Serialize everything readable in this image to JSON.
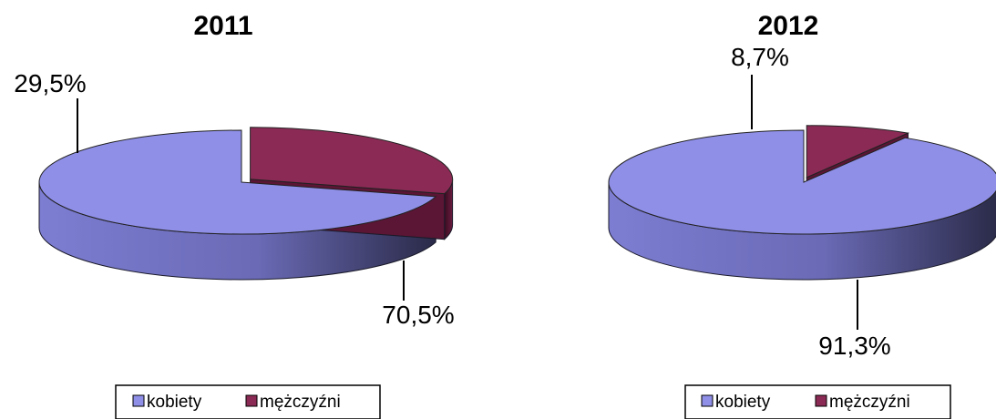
{
  "chart_data": [
    {
      "type": "pie",
      "style": "3d",
      "title": "2011",
      "categories": [
        "kobiety",
        "mężczyźni"
      ],
      "values": [
        70.5,
        29.5
      ],
      "labels": [
        "70,5%",
        "29,5%"
      ],
      "exploded": [
        "mężczyźni"
      ],
      "colors": [
        "#8f8fe8",
        "#8b2b55"
      ],
      "legend": "bottom"
    },
    {
      "type": "pie",
      "style": "3d",
      "title": "2012",
      "categories": [
        "kobiety",
        "mężczyźni"
      ],
      "values": [
        91.3,
        8.7
      ],
      "labels": [
        "91,3%",
        "8,7%"
      ],
      "exploded": [
        "mężczyźni"
      ],
      "colors": [
        "#8f8fe8",
        "#8b2b55"
      ],
      "legend": "bottom"
    }
  ]
}
